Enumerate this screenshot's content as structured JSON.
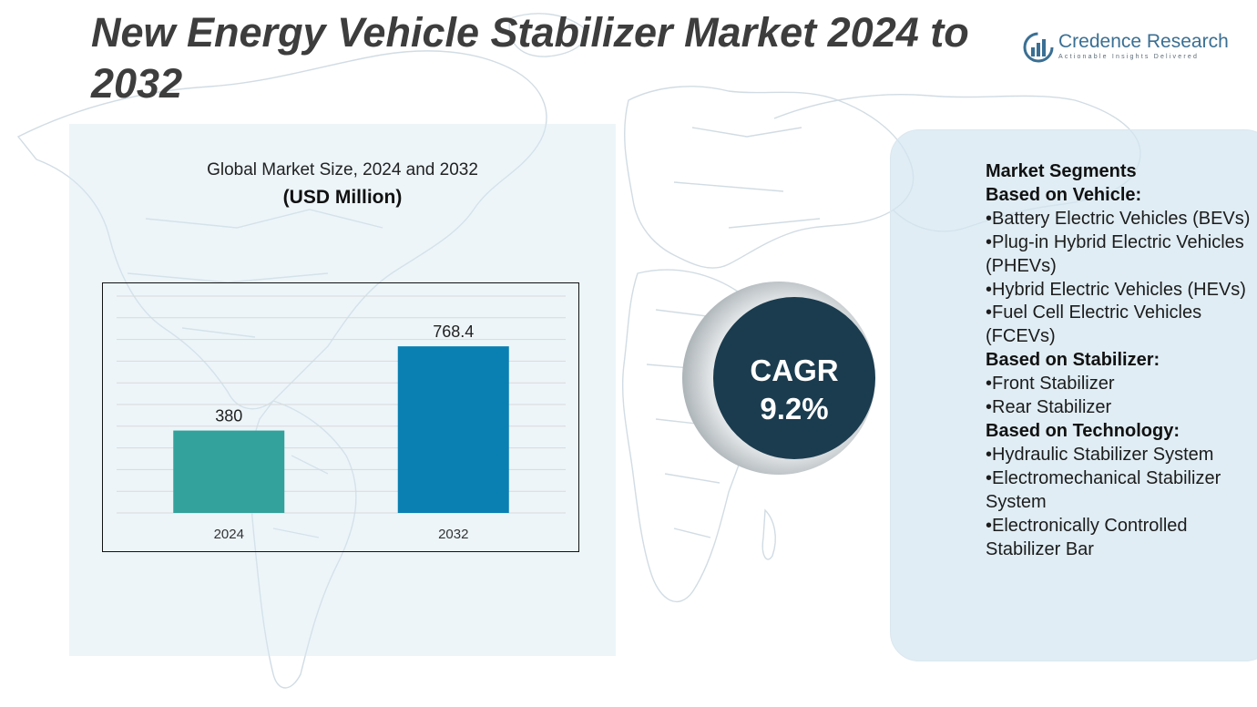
{
  "title": "New Energy Vehicle Stabilizer Market 2024 to 2032",
  "brand": {
    "name": "Credence Research",
    "tagline": "Actionable Insights Delivered",
    "color": "#3a6f93"
  },
  "chart_data": {
    "type": "bar",
    "title": "Global Market Size, 2024 and 2032",
    "subtitle": "(USD Million)",
    "categories": [
      "2024",
      "2032"
    ],
    "values": [
      380,
      768.4
    ],
    "data_labels": [
      "380",
      "768.4"
    ],
    "colors": [
      "#33a19c",
      "#0a80b2"
    ],
    "ylim": [
      0,
      1000
    ],
    "grid": true,
    "xlabel": "",
    "ylabel": ""
  },
  "cagr": {
    "label": "CAGR",
    "value": "9.2%",
    "color": "#1b3c4f"
  },
  "segments": {
    "heading": "Market Segments",
    "groups": [
      {
        "title": "Based on Vehicle:",
        "items": [
          "•Battery Electric Vehicles (BEVs)",
          "•Plug-in Hybrid Electric Vehicles (PHEVs)",
          "•Hybrid Electric Vehicles (HEVs)",
          "•Fuel Cell Electric Vehicles (FCEVs)"
        ]
      },
      {
        "title": "Based on Stabilizer:",
        "items": [
          "•Front Stabilizer",
          "•Rear Stabilizer"
        ]
      },
      {
        "title": "Based on Technology:",
        "items": [
          "•Hydraulic Stabilizer System",
          "•Electromechanical Stabilizer System",
          "•Electronically Controlled Stabilizer Bar"
        ]
      }
    ]
  }
}
